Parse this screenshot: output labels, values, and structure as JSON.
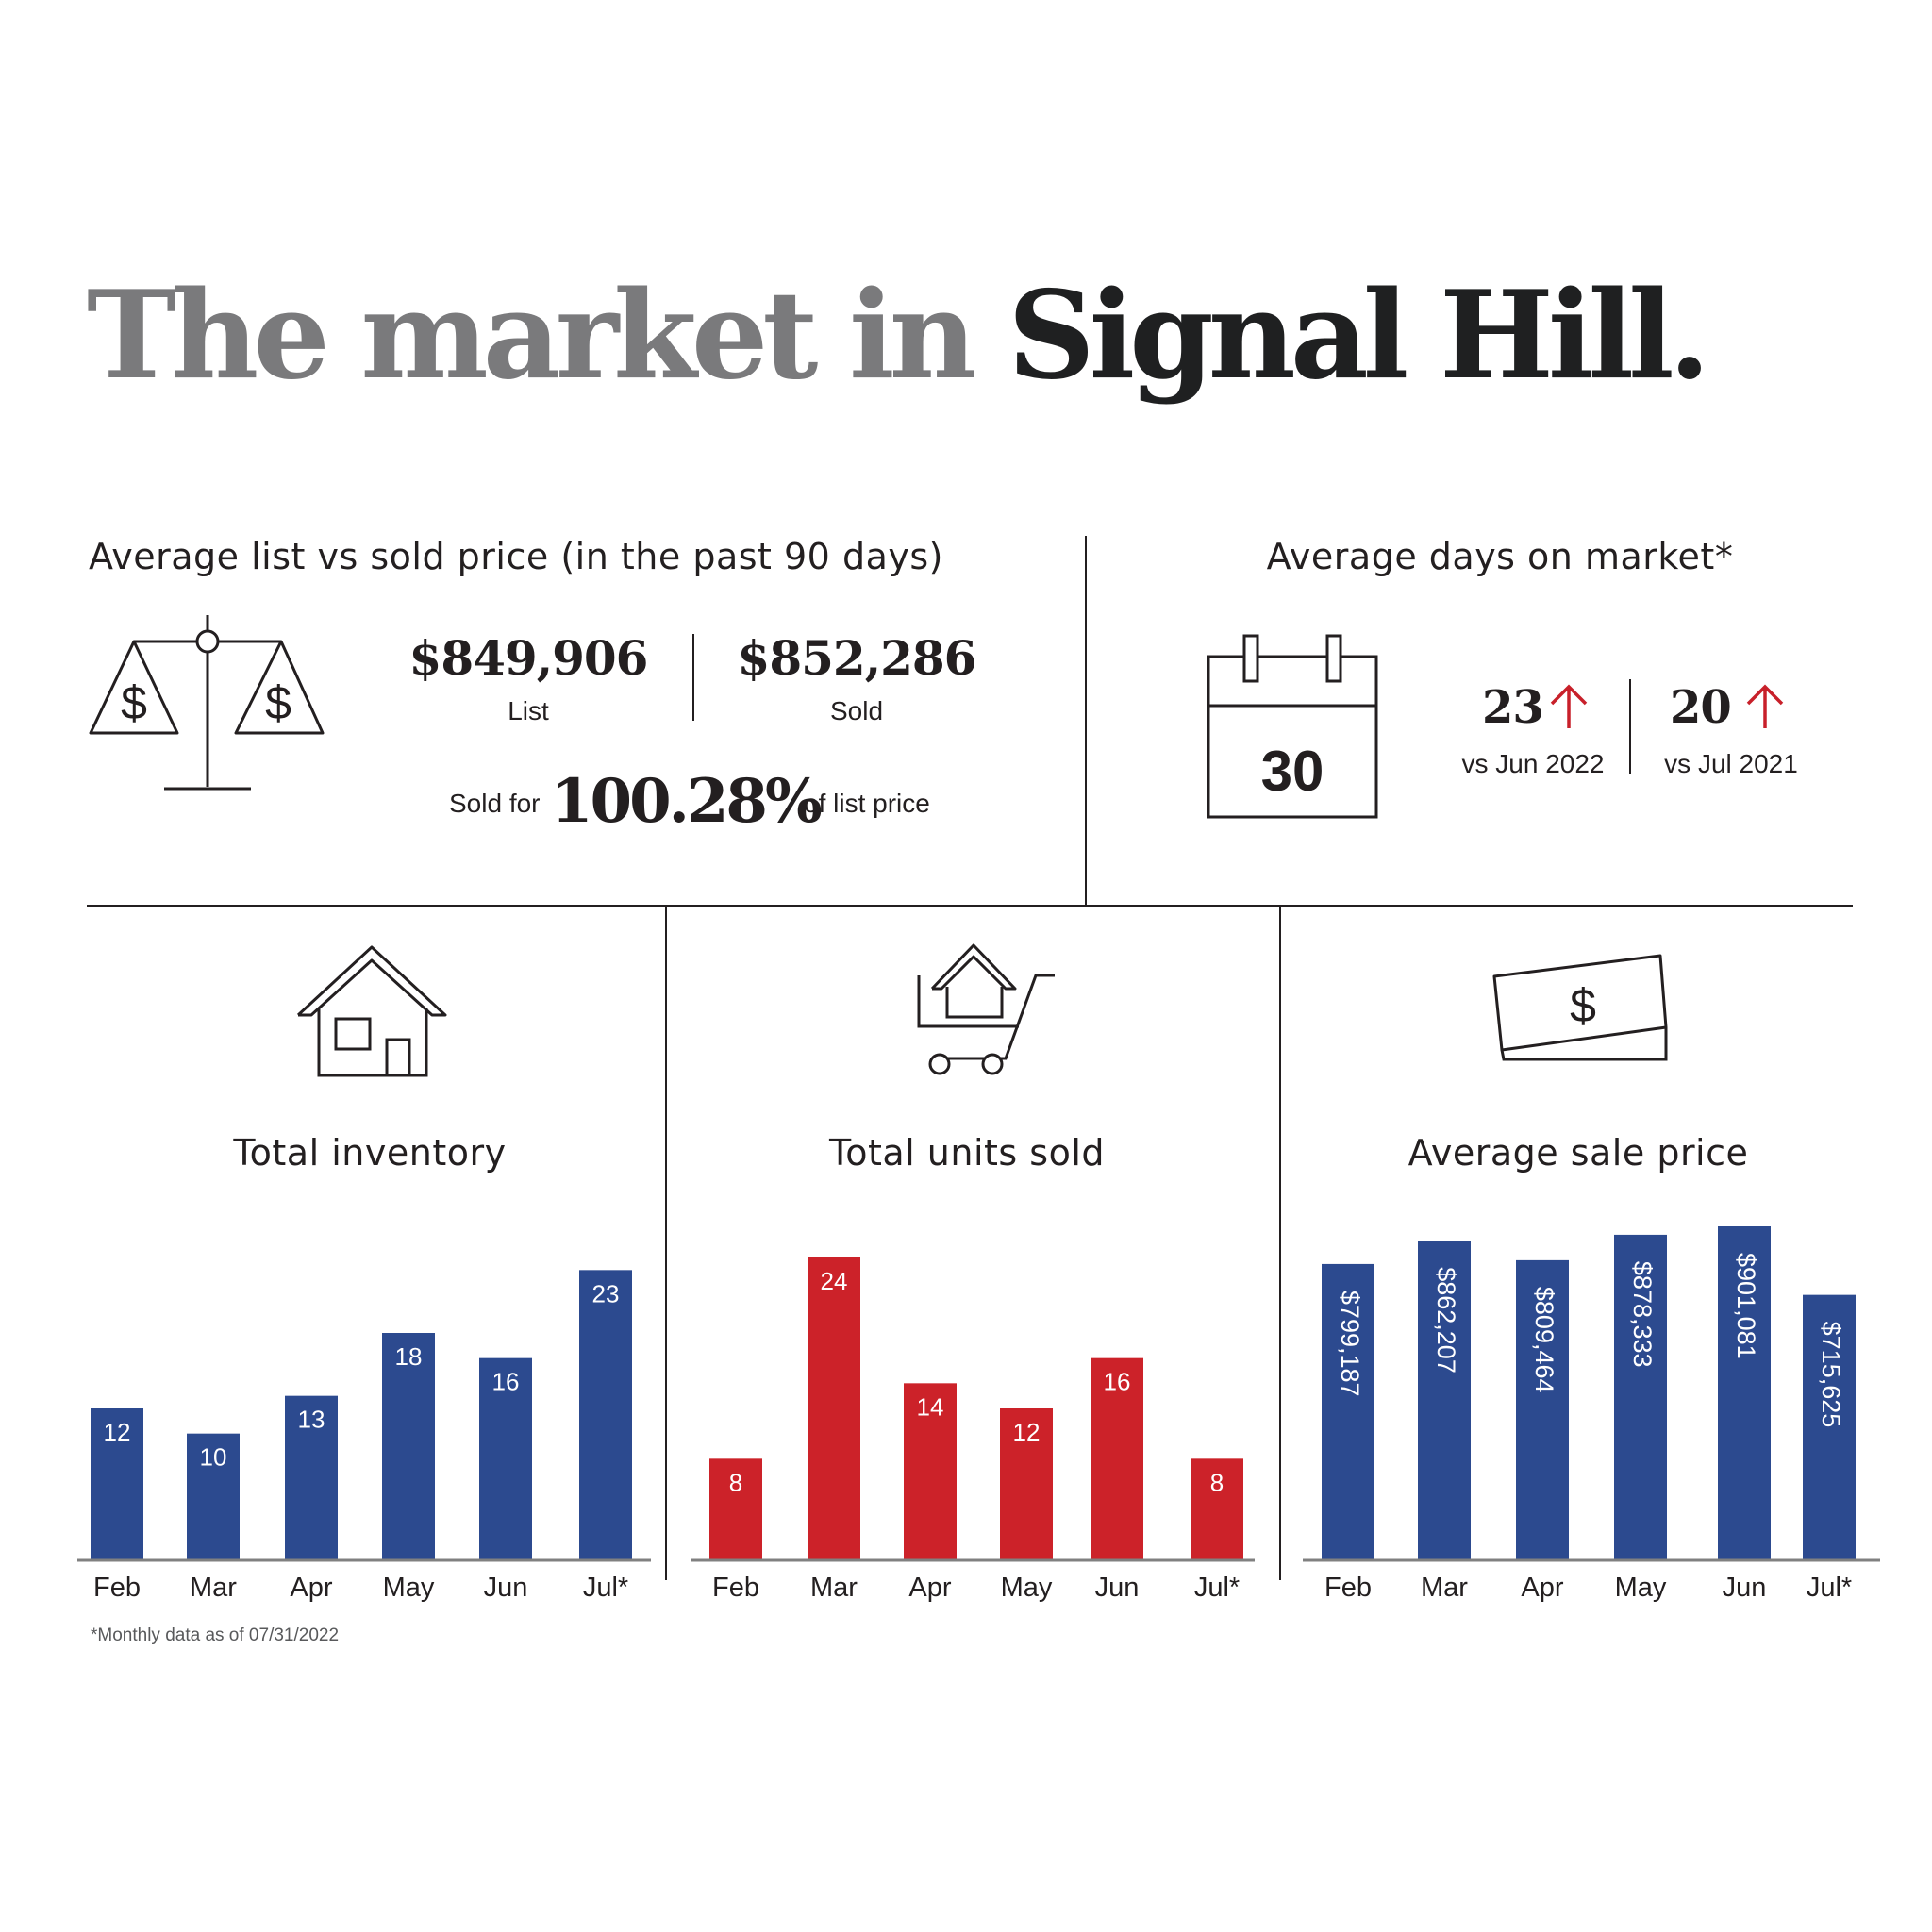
{
  "title": {
    "part1": "The market in",
    "part2": "Signal Hill."
  },
  "list_vs_sold": {
    "heading": "Average list vs sold price (in the past 90 days)",
    "list_value": "$849,906",
    "list_label": "List",
    "sold_value": "$852,286",
    "sold_label": "Sold",
    "sold_for_prefix": "Sold for",
    "sold_for_percent": "100.28%",
    "sold_for_suffix": "of list price",
    "icon": "scale-icon",
    "icon_symbol": "$"
  },
  "days_on_market": {
    "heading": "Average days on market*",
    "calendar_value": "30",
    "icon": "calendar-icon",
    "comparisons": [
      {
        "value": "23",
        "label": "vs Jun 2022",
        "trend": "up"
      },
      {
        "value": "20",
        "label": "vs Jul 2021",
        "trend": "up"
      }
    ],
    "trend_color": "#c8202a"
  },
  "colors": {
    "blue": "#2c4a8f",
    "red": "#cc2229",
    "axis": "#808080"
  },
  "chart_data": [
    {
      "type": "bar",
      "title": "Total inventory",
      "icon": "house-icon",
      "categories": [
        "Feb",
        "Mar",
        "Apr",
        "May",
        "Jun",
        "Jul*"
      ],
      "values": [
        12,
        10,
        13,
        18,
        16,
        23
      ],
      "labels": [
        "12",
        "10",
        "13",
        "18",
        "16",
        "23"
      ],
      "ylim": [
        0,
        30
      ],
      "color": "#2c4a8f",
      "label_orientation": "horizontal"
    },
    {
      "type": "bar",
      "title": "Total units sold",
      "icon": "cart-icon",
      "categories": [
        "Feb",
        "Mar",
        "Apr",
        "May",
        "Jun",
        "Jul*"
      ],
      "values": [
        8,
        24,
        14,
        12,
        16,
        8
      ],
      "labels": [
        "8",
        "24",
        "14",
        "12",
        "16",
        "8"
      ],
      "ylim": [
        0,
        30
      ],
      "color": "#cc2229",
      "label_orientation": "horizontal"
    },
    {
      "type": "bar",
      "title": "Average sale price",
      "icon": "money-icon",
      "categories": [
        "Feb",
        "Mar",
        "Apr",
        "May",
        "Jun",
        "Jul*"
      ],
      "values": [
        799187,
        862207,
        809464,
        878333,
        901081,
        715625
      ],
      "labels": [
        "$799,187",
        "$862,207",
        "$809,464",
        "$878,333",
        "$901,081",
        "$715,625"
      ],
      "ylim": [
        0,
        901081
      ],
      "color": "#2c4a8f",
      "label_orientation": "vertical"
    }
  ],
  "footnote": "*Monthly data as of 07/31/2022"
}
